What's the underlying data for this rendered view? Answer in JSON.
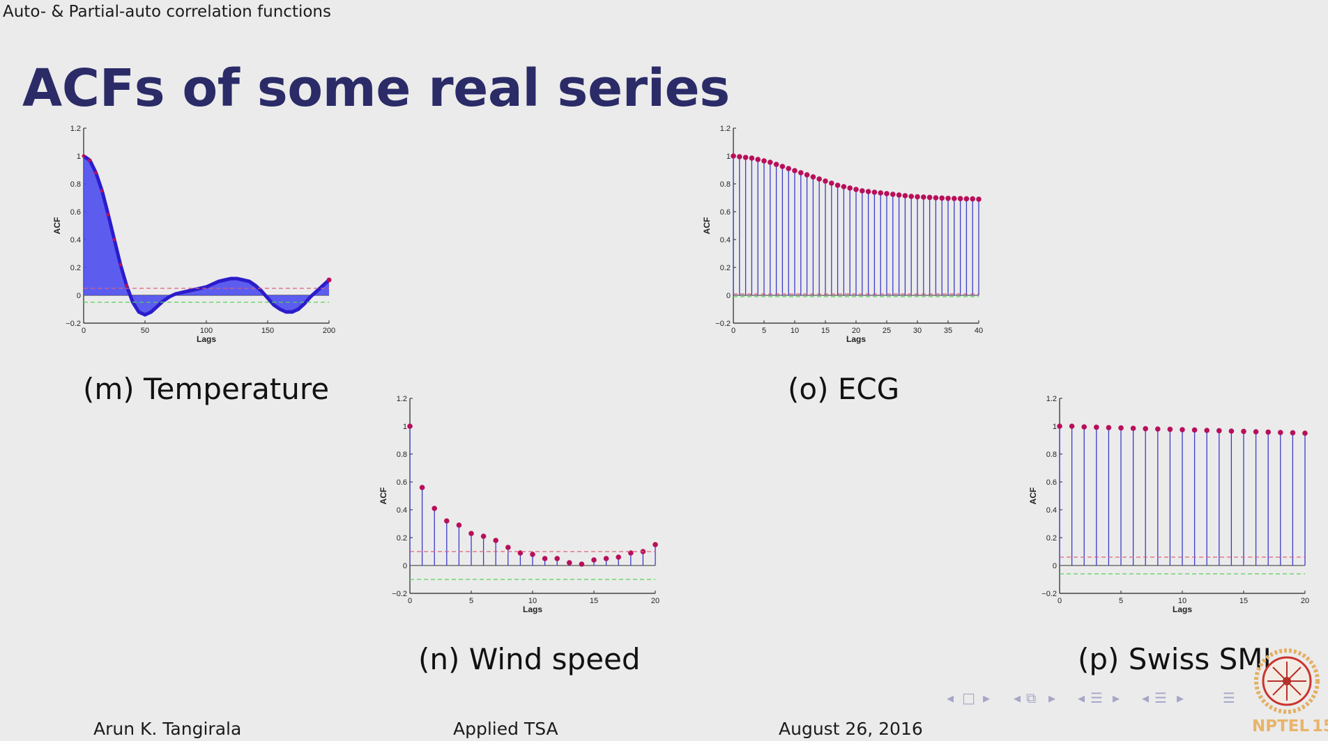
{
  "header": {
    "section": "Auto- & Partial-auto correlation functions"
  },
  "slide": {
    "title": "ACFs of some real series"
  },
  "chart_data": [
    {
      "id": "m",
      "type": "area",
      "caption": "(m) Temperature",
      "xlabel": "Lags",
      "ylabel": "ACF",
      "xlim": [
        0,
        200
      ],
      "ylim": [
        -0.2,
        1.2
      ],
      "xticks": [
        "0",
        "50",
        "100",
        "150",
        "200"
      ],
      "yticks": [
        "−0.2",
        "0",
        "0.2",
        "0.4",
        "0.6",
        "0.8",
        "1",
        "1.2"
      ],
      "conf_upper": 0.05,
      "conf_lower": -0.05,
      "x": [
        0,
        5,
        10,
        15,
        20,
        25,
        30,
        35,
        40,
        45,
        50,
        55,
        60,
        65,
        70,
        75,
        80,
        85,
        90,
        95,
        100,
        105,
        110,
        115,
        120,
        125,
        130,
        135,
        140,
        145,
        150,
        155,
        160,
        165,
        170,
        175,
        180,
        185,
        190,
        195,
        200
      ],
      "values": [
        1.0,
        0.97,
        0.88,
        0.75,
        0.58,
        0.4,
        0.22,
        0.07,
        -0.05,
        -0.12,
        -0.14,
        -0.12,
        -0.08,
        -0.04,
        -0.01,
        0.01,
        0.02,
        0.03,
        0.04,
        0.05,
        0.06,
        0.08,
        0.1,
        0.11,
        0.12,
        0.12,
        0.11,
        0.1,
        0.07,
        0.03,
        -0.02,
        -0.07,
        -0.1,
        -0.12,
        -0.12,
        -0.1,
        -0.06,
        -0.01,
        0.03,
        0.07,
        0.11
      ],
      "fill_color": "#4d4df0",
      "line_color": "#2b1ccc",
      "marker_color": "#b80f5a"
    },
    {
      "id": "o",
      "type": "stem",
      "caption": "(o) ECG",
      "xlabel": "Lags",
      "ylabel": "ACF",
      "xlim": [
        0,
        40
      ],
      "ylim": [
        -0.2,
        1.2
      ],
      "xticks": [
        "0",
        "5",
        "10",
        "15",
        "20",
        "25",
        "30",
        "35",
        "40"
      ],
      "yticks": [
        "−0.2",
        "0",
        "0.2",
        "0.4",
        "0.6",
        "0.8",
        "1",
        "1.2"
      ],
      "conf_upper": 0.01,
      "conf_lower": -0.01,
      "values": [
        1.0,
        0.995,
        0.99,
        0.985,
        0.975,
        0.965,
        0.955,
        0.94,
        0.925,
        0.91,
        0.895,
        0.88,
        0.865,
        0.85,
        0.835,
        0.82,
        0.805,
        0.79,
        0.78,
        0.77,
        0.76,
        0.75,
        0.745,
        0.74,
        0.735,
        0.73,
        0.725,
        0.72,
        0.715,
        0.71,
        0.707,
        0.705,
        0.703,
        0.7,
        0.698,
        0.696,
        0.695,
        0.694,
        0.693,
        0.692,
        0.69
      ],
      "line_color": "#3a3acc",
      "marker_color": "#b80f5a"
    },
    {
      "id": "n",
      "type": "stem",
      "caption": "(n) Wind speed",
      "xlabel": "Lags",
      "ylabel": "ACF",
      "xlim": [
        0,
        20
      ],
      "ylim": [
        -0.2,
        1.2
      ],
      "xticks": [
        "0",
        "5",
        "10",
        "15",
        "20"
      ],
      "yticks": [
        "−0.2",
        "0",
        "0.2",
        "0.4",
        "0.6",
        "0.8",
        "1",
        "1.2"
      ],
      "conf_upper": 0.1,
      "conf_lower": -0.1,
      "values": [
        1.0,
        0.56,
        0.41,
        0.32,
        0.29,
        0.23,
        0.21,
        0.18,
        0.13,
        0.09,
        0.08,
        0.05,
        0.05,
        0.02,
        0.01,
        0.04,
        0.05,
        0.06,
        0.09,
        0.1,
        0.15
      ],
      "line_color": "#3a3acc",
      "marker_color": "#b80f5a"
    },
    {
      "id": "p",
      "type": "stem",
      "caption": "(p) Swiss SMI",
      "xlabel": "Lags",
      "ylabel": "ACF",
      "xlim": [
        0,
        20
      ],
      "ylim": [
        -0.2,
        1.2
      ],
      "xticks": [
        "0",
        "5",
        "10",
        "15",
        "20"
      ],
      "yticks": [
        "−0.2",
        "0",
        "0.2",
        "0.4",
        "0.6",
        "0.8",
        "1",
        "1.2"
      ],
      "conf_upper": 0.06,
      "conf_lower": -0.06,
      "values": [
        1.0,
        1.0,
        0.995,
        0.993,
        0.99,
        0.988,
        0.985,
        0.982,
        0.98,
        0.978,
        0.975,
        0.973,
        0.97,
        0.968,
        0.965,
        0.963,
        0.96,
        0.958,
        0.955,
        0.953,
        0.95
      ],
      "line_color": "#3a3acc",
      "marker_color": "#b80f5a"
    }
  ],
  "footer": {
    "author": "Arun K. Tangirala",
    "course": "Applied TSA",
    "date": "August 26, 2016",
    "page": "15"
  },
  "logo": {
    "text": "NPTEL"
  }
}
